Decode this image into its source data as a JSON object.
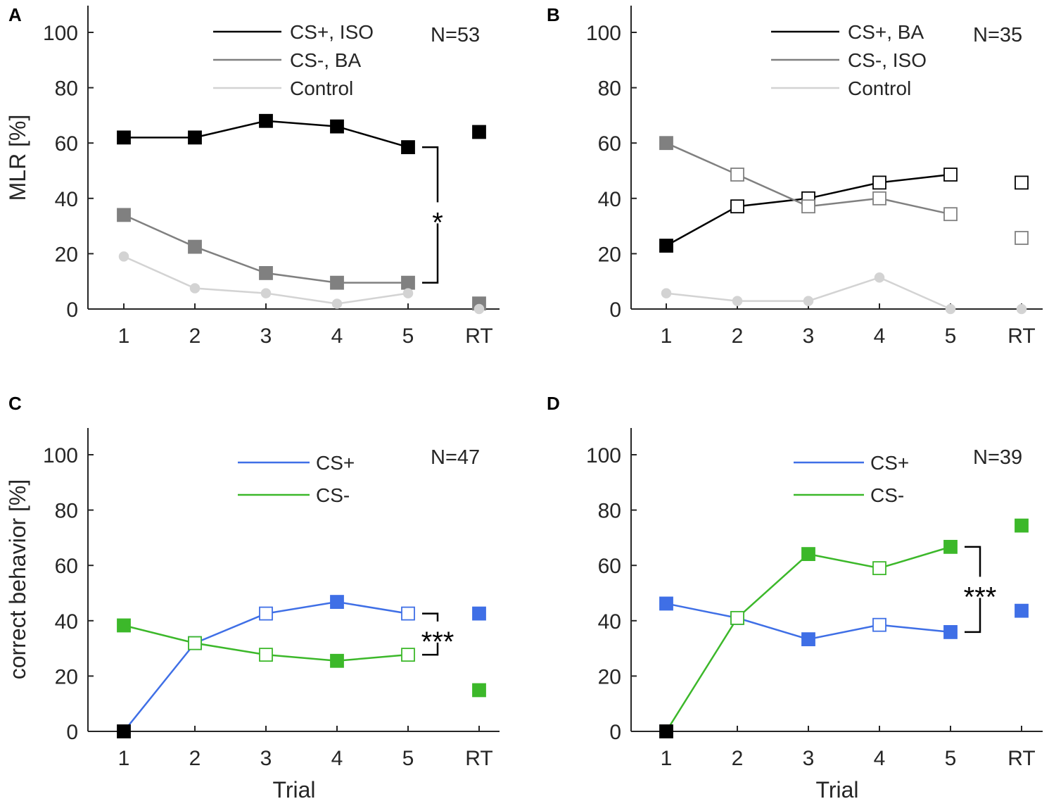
{
  "chart_data": [
    {
      "panel": "A",
      "type": "line",
      "ylabel": "MLR [%]",
      "xlabel": "",
      "categories": [
        "1",
        "2",
        "3",
        "4",
        "5",
        "RT"
      ],
      "ylim": [
        0,
        110
      ],
      "yticks": [
        0,
        20,
        40,
        60,
        80,
        100
      ],
      "n_label": "N=53",
      "legend": "top-center",
      "significance": {
        "label": "*",
        "between": [
          "CS+, ISO",
          "CS-, BA"
        ],
        "at": "5"
      },
      "series": [
        {
          "name": "CS+, ISO",
          "color": "#000000",
          "marker": "square",
          "values": [
            62,
            62,
            68,
            66,
            58.5,
            64
          ],
          "filled": [
            true,
            true,
            true,
            true,
            true,
            true
          ]
        },
        {
          "name": "CS-, BA",
          "color": "#808080",
          "marker": "square",
          "values": [
            34,
            22.5,
            13,
            9.5,
            9.5,
            2
          ],
          "filled": [
            true,
            true,
            true,
            true,
            true,
            true
          ]
        },
        {
          "name": "Control",
          "color": "#d3d3d3",
          "marker": "circle",
          "values": [
            19,
            7.5,
            5.7,
            1.9,
            5.7,
            0
          ],
          "filled": [
            true,
            true,
            true,
            true,
            true,
            true
          ]
        }
      ]
    },
    {
      "panel": "B",
      "type": "line",
      "ylabel": "",
      "xlabel": "",
      "categories": [
        "1",
        "2",
        "3",
        "4",
        "5",
        "RT"
      ],
      "ylim": [
        0,
        110
      ],
      "yticks": [
        0,
        20,
        40,
        60,
        80,
        100
      ],
      "n_label": "N=35",
      "legend": "top-center",
      "series": [
        {
          "name": "CS+, BA",
          "color": "#000000",
          "marker": "square",
          "values": [
            22.9,
            37.1,
            40,
            45.7,
            48.6,
            45.7
          ],
          "filled": [
            true,
            false,
            false,
            false,
            false,
            false
          ]
        },
        {
          "name": "CS-, ISO",
          "color": "#808080",
          "marker": "square",
          "values": [
            60,
            48.6,
            37.1,
            40,
            34.3,
            25.7
          ],
          "filled": [
            true,
            false,
            false,
            false,
            false,
            false
          ]
        },
        {
          "name": "Control",
          "color": "#d3d3d3",
          "marker": "circle",
          "values": [
            5.7,
            2.9,
            2.9,
            11.4,
            0,
            0
          ],
          "filled": [
            true,
            true,
            true,
            true,
            true,
            true
          ]
        }
      ]
    },
    {
      "panel": "C",
      "type": "line",
      "ylabel": "correct behavior [%]",
      "xlabel": "Trial",
      "categories": [
        "1",
        "2",
        "3",
        "4",
        "5",
        "RT"
      ],
      "ylim": [
        0,
        110
      ],
      "yticks": [
        0,
        20,
        40,
        60,
        80,
        100
      ],
      "n_label": "N=47",
      "legend": "top-center",
      "significance": {
        "label": "***",
        "between": [
          "CS+",
          "CS-"
        ],
        "at": "5"
      },
      "first_point_black": true,
      "series": [
        {
          "name": "CS+",
          "color": "#3f6fe6",
          "marker": "square",
          "values": [
            0,
            31.9,
            42.6,
            46.8,
            42.6,
            42.6
          ],
          "filled": [
            true,
            false,
            false,
            true,
            false,
            true
          ]
        },
        {
          "name": "CS-",
          "color": "#3cb82a",
          "marker": "square",
          "values": [
            38.3,
            31.9,
            27.7,
            25.5,
            27.7,
            14.9
          ],
          "filled": [
            true,
            false,
            false,
            true,
            false,
            true
          ]
        }
      ]
    },
    {
      "panel": "D",
      "type": "line",
      "ylabel": "",
      "xlabel": "Trial",
      "categories": [
        "1",
        "2",
        "3",
        "4",
        "5",
        "RT"
      ],
      "ylim": [
        0,
        110
      ],
      "yticks": [
        0,
        20,
        40,
        60,
        80,
        100
      ],
      "n_label": "N=39",
      "legend": "top-center",
      "significance": {
        "label": "***",
        "between": [
          "CS+",
          "CS-"
        ],
        "at": "5"
      },
      "first_point_black": true,
      "series": [
        {
          "name": "CS+",
          "color": "#3f6fe6",
          "marker": "square",
          "values": [
            46.2,
            41,
            33.3,
            38.5,
            35.9,
            43.6
          ],
          "filled": [
            true,
            false,
            true,
            false,
            true,
            true
          ]
        },
        {
          "name": "CS-",
          "color": "#3cb82a",
          "marker": "square",
          "values": [
            0,
            41,
            64.1,
            59,
            66.7,
            74.4
          ],
          "filled": [
            true,
            false,
            true,
            false,
            true,
            true
          ]
        }
      ]
    }
  ]
}
